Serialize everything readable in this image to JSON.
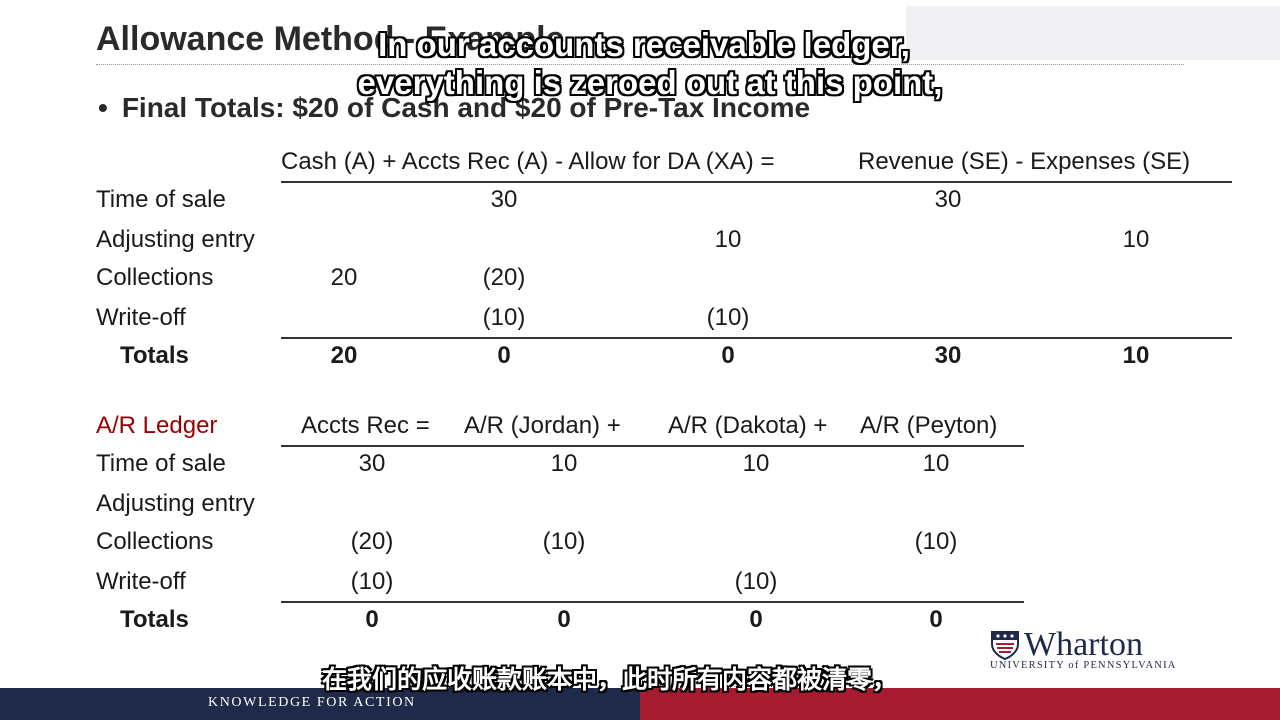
{
  "slide": {
    "title": "Allowance Method - Example",
    "bullet": "Final Totals: $20 of Cash and $20 of Pre-Tax Income"
  },
  "captions": {
    "english_line1": "In our accounts receivable ledger,",
    "english_line2": "everything is zeroed out at this point,",
    "chinese": "在我们的应收账款账本中，此时所有内容都被清零，"
  },
  "table1": {
    "header": "Cash (A) + Accts Rec (A) - Allow for DA (XA) =",
    "header_right": "Revenue (SE) - Expenses (SE)",
    "rows": [
      {
        "label": "Time of sale",
        "cells": [
          "",
          "30",
          "",
          "30",
          ""
        ]
      },
      {
        "label": "Adjusting entry",
        "cells": [
          "",
          "",
          "10",
          "",
          "10"
        ]
      },
      {
        "label": "Collections",
        "cells": [
          "20",
          "(20)",
          "",
          "",
          ""
        ]
      },
      {
        "label": "Write-off",
        "cells": [
          "",
          "(10)",
          "(10)",
          "",
          ""
        ]
      }
    ],
    "totals": {
      "label": "Totals",
      "cells": [
        "20",
        "0",
        "0",
        "30",
        "10"
      ]
    }
  },
  "table2": {
    "label": "A/R Ledger",
    "headers": [
      "Accts Rec =",
      "A/R (Jordan) +",
      "A/R (Dakota) +",
      "A/R (Peyton)"
    ],
    "rows": [
      {
        "label": "Time of sale",
        "cells": [
          "30",
          "10",
          "10",
          "10"
        ]
      },
      {
        "label": "Adjusting entry",
        "cells": [
          "",
          "",
          "",
          ""
        ]
      },
      {
        "label": "Collections",
        "cells": [
          "(20)",
          "(10)",
          "",
          "(10)"
        ]
      },
      {
        "label": "Write-off",
        "cells": [
          "(10)",
          "",
          "(10)",
          ""
        ]
      }
    ],
    "totals": {
      "label": "Totals",
      "cells": [
        "0",
        "0",
        "0",
        "0"
      ]
    }
  },
  "footer": {
    "tagline": "KNOWLEDGE FOR ACTION",
    "logo_word": "Wharton",
    "logo_sub": "UNIVERSITY of PENNSYLVANIA"
  },
  "colors": {
    "navy": "#1f2a4a",
    "red": "#a51c30",
    "ledger_label": "#990000"
  }
}
